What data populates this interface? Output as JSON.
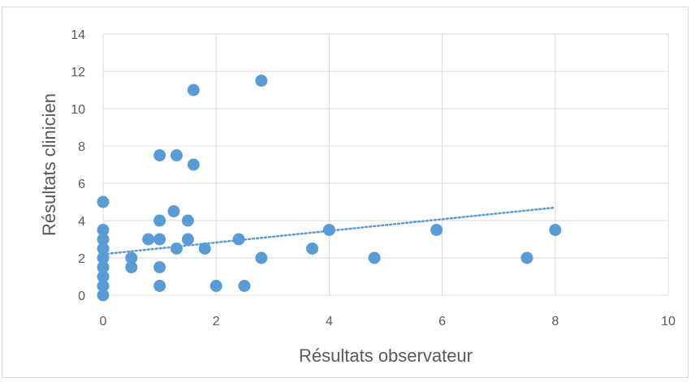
{
  "chart_data": {
    "type": "scatter",
    "title": "",
    "xlabel": "Résultats observateur",
    "ylabel": "Résultats  clinicien",
    "xlim": [
      0,
      10
    ],
    "ylim": [
      0,
      14
    ],
    "x_ticks": [
      0,
      2,
      4,
      6,
      8,
      10
    ],
    "y_ticks": [
      0,
      2,
      4,
      6,
      8,
      10,
      12,
      14
    ],
    "grid": true,
    "legend": "none",
    "marker_color": "#5b9bd5",
    "trendline": {
      "type": "linear",
      "style": "dotted",
      "color": "#5b9bd5",
      "x_range": [
        0,
        8
      ],
      "y_start": 2.2,
      "y_end": 4.7
    },
    "points": [
      [
        0,
        0
      ],
      [
        0,
        0.5
      ],
      [
        0,
        1
      ],
      [
        0,
        1.5
      ],
      [
        0,
        2
      ],
      [
        0,
        2.5
      ],
      [
        0,
        3
      ],
      [
        0,
        3.5
      ],
      [
        0,
        5
      ],
      [
        0.5,
        1.5
      ],
      [
        0.5,
        2
      ],
      [
        0.8,
        3
      ],
      [
        1,
        0.5
      ],
      [
        1,
        1.5
      ],
      [
        1,
        3
      ],
      [
        1,
        4
      ],
      [
        1,
        7.5
      ],
      [
        1.25,
        4.5
      ],
      [
        1.3,
        2.5
      ],
      [
        1.3,
        7.5
      ],
      [
        1.5,
        3
      ],
      [
        1.5,
        4
      ],
      [
        1.6,
        7
      ],
      [
        1.6,
        11
      ],
      [
        1.8,
        2.5
      ],
      [
        2,
        0.5
      ],
      [
        2.4,
        3
      ],
      [
        2.5,
        0.5
      ],
      [
        2.8,
        2
      ],
      [
        2.8,
        11.5
      ],
      [
        3.7,
        2.5
      ],
      [
        4,
        3.5
      ],
      [
        4.8,
        2
      ],
      [
        5.9,
        3.5
      ],
      [
        7.5,
        2
      ],
      [
        8,
        3.5
      ]
    ]
  }
}
